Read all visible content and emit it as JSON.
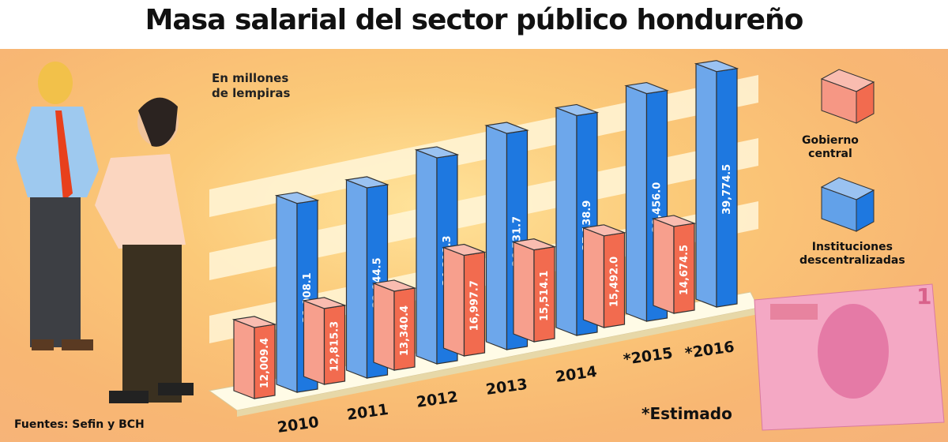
{
  "title": "Masa salarial del sector público hondureño",
  "unit_label": [
    "En millones",
    "de lempiras"
  ],
  "source": "Fuentes: Sefin y BCH",
  "footnote": "*Estimado",
  "chart_data": {
    "type": "bar",
    "title": "Masa salarial del sector público hondureño",
    "ylabel": "En millones de lempiras",
    "categories": [
      "2010",
      "2011",
      "2012",
      "2013",
      "2014",
      "*2015",
      "*2016"
    ],
    "series": [
      {
        "name": "Gobierno central",
        "color": "#f26b4f",
        "values": [
          12009.4,
          12815.3,
          13340.4,
          16997.7,
          15514.1,
          15492.0,
          14674.5
        ],
        "labels": [
          "12,009.4",
          "12,815.3",
          "13,340.4",
          "16,997.7",
          "15,514.1",
          "15,492.0",
          "14,674.5"
        ]
      },
      {
        "name": "Instituciones descentralizadas",
        "color": "#1e78e0",
        "values": [
          31908.1,
          32144.5,
          34809.3,
          36531.7,
          37138.9,
          38456.0,
          39774.5
        ],
        "labels": [
          "31,908.1",
          "32,144.5",
          "34,809.3",
          "36,531.7",
          "37,138.9",
          "38,456.0",
          "39,774.5"
        ]
      }
    ],
    "legend_position": "right",
    "grid": false,
    "style": "3d-bar"
  },
  "legend": [
    {
      "label": [
        "Gobierno",
        "central"
      ],
      "color": "#f26b4f"
    },
    {
      "label": [
        "Instituciones",
        "descentralizadas"
      ],
      "color": "#1e78e0"
    }
  ]
}
